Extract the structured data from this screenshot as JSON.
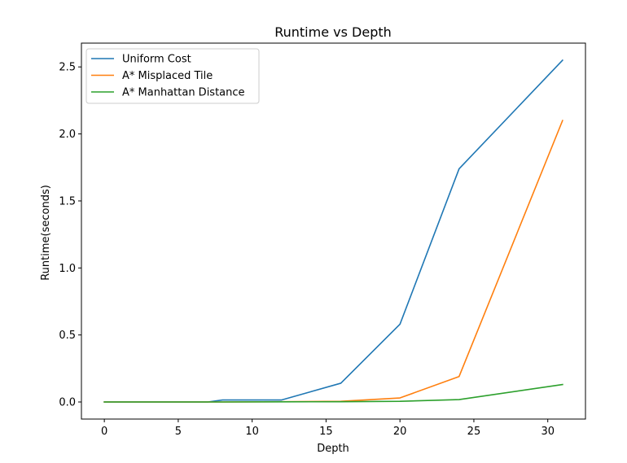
{
  "chart_data": {
    "type": "line",
    "title": "Runtime vs Depth",
    "xlabel": "Depth",
    "ylabel": "Runtime(seconds)",
    "xlim": [
      -1.55,
      32.55
    ],
    "ylim": [
      -0.1275,
      2.6775
    ],
    "xticks": [
      0,
      5,
      10,
      15,
      20,
      25,
      30
    ],
    "yticks": [
      0.0,
      0.5,
      1.0,
      1.5,
      2.0,
      2.5
    ],
    "ytick_labels": [
      "0.0",
      "0.5",
      "1.0",
      "1.5",
      "2.0",
      "2.5"
    ],
    "legend_position": "top-left",
    "grid": false,
    "x": [
      0,
      2,
      3,
      4,
      5,
      7,
      8,
      12,
      16,
      20,
      24,
      31
    ],
    "series": [
      {
        "name": "Uniform Cost",
        "color": "#1f77b4",
        "values": [
          0.0,
          0.0,
          0.0,
          0.0,
          0.0,
          0.0,
          0.015,
          0.015,
          0.14,
          0.58,
          1.74,
          2.55
        ]
      },
      {
        "name": "A* Misplaced Tile",
        "color": "#ff7f0e",
        "values": [
          0.0,
          0.0,
          0.0,
          0.0,
          0.0,
          0.0,
          0.0,
          0.002,
          0.005,
          0.03,
          0.19,
          2.1
        ]
      },
      {
        "name": "A* Manhattan Distance",
        "color": "#2ca02c",
        "values": [
          0.0,
          0.0,
          0.0,
          0.0,
          0.0,
          0.0,
          0.0,
          0.001,
          0.002,
          0.005,
          0.018,
          0.13
        ]
      }
    ]
  }
}
